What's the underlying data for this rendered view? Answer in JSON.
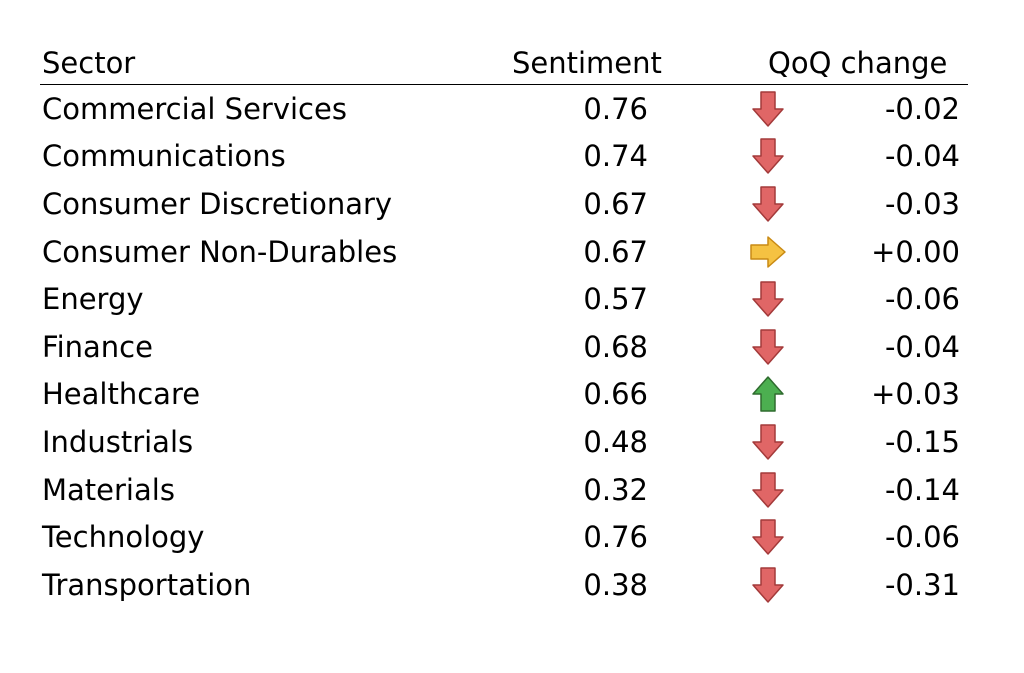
{
  "chart_data": {
    "type": "table",
    "columns": [
      "Sector",
      "Sentiment",
      "QoQ change"
    ],
    "rows": [
      {
        "sector": "Commercial Services",
        "sentiment": "0.76",
        "direction": "down",
        "change": "-0.02"
      },
      {
        "sector": "Communications",
        "sentiment": "0.74",
        "direction": "down",
        "change": "-0.04"
      },
      {
        "sector": "Consumer Discretionary",
        "sentiment": "0.67",
        "direction": "down",
        "change": "-0.03"
      },
      {
        "sector": "Consumer Non-Durables",
        "sentiment": "0.67",
        "direction": "flat",
        "change": "+0.00"
      },
      {
        "sector": "Energy",
        "sentiment": "0.57",
        "direction": "down",
        "change": "-0.06"
      },
      {
        "sector": "Finance",
        "sentiment": "0.68",
        "direction": "down",
        "change": "-0.04"
      },
      {
        "sector": "Healthcare",
        "sentiment": "0.66",
        "direction": "up",
        "change": "+0.03"
      },
      {
        "sector": "Industrials",
        "sentiment": "0.48",
        "direction": "down",
        "change": "-0.15"
      },
      {
        "sector": "Materials",
        "sentiment": "0.32",
        "direction": "down",
        "change": "-0.14"
      },
      {
        "sector": "Technology",
        "sentiment": "0.76",
        "direction": "down",
        "change": "-0.06"
      },
      {
        "sector": "Transportation",
        "sentiment": "0.38",
        "direction": "down",
        "change": "-0.31"
      }
    ],
    "arrow_icons": {
      "down": {
        "name": "red-down-arrow-icon",
        "fill": "#e06666",
        "stroke": "#a33a3a"
      },
      "up": {
        "name": "green-up-arrow-icon",
        "fill": "#4caf50",
        "stroke": "#2e6b2e"
      },
      "flat": {
        "name": "orange-right-arrow-icon",
        "fill": "#f5c242",
        "stroke": "#c98a14"
      }
    }
  }
}
